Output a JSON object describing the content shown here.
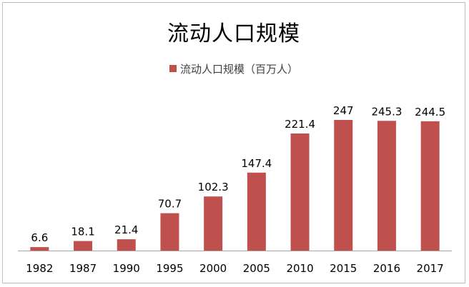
{
  "chart_data": {
    "type": "bar",
    "title": "流动人口规模",
    "categories": [
      "1982",
      "1987",
      "1990",
      "1995",
      "2000",
      "2005",
      "2010",
      "2015",
      "2016",
      "2017"
    ],
    "series": [
      {
        "name": "流动人口规模（百万人）",
        "values": [
          6.6,
          18.1,
          21.4,
          70.7,
          102.3,
          147.4,
          221.4,
          247,
          245.3,
          244.5
        ],
        "data_labels": [
          "6.6",
          "18.1",
          "21.4",
          "70.7",
          "102.3",
          "147.4",
          "221.4",
          "247",
          "245.3",
          "244.5"
        ],
        "color": "#c0504d"
      }
    ],
    "ylim": [
      0,
      250
    ],
    "grid": false,
    "legend_position": "top",
    "axis_color": "#a6a6a6"
  }
}
